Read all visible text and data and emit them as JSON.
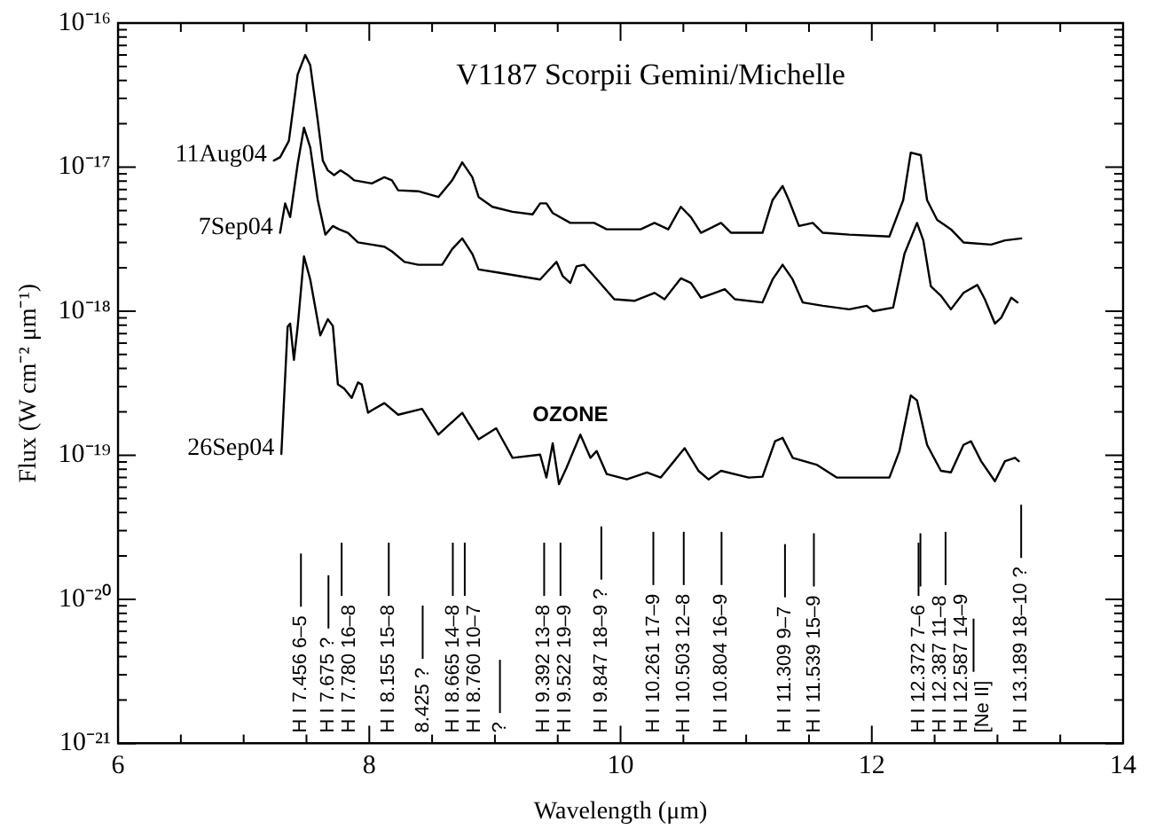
{
  "chart_data": {
    "type": "line",
    "title": "V1187 Scorpii Gemini/Michelle",
    "xlabel": "Wavelength (μm)",
    "ylabel": "Flux (W cm⁻² μm⁻¹)",
    "log": "y",
    "legend": false,
    "marker": "none",
    "xlim": [
      6,
      14
    ],
    "xticks": [
      6,
      {
        "value": 6.5,
        "label": null
      },
      {
        "value": 7,
        "label": null
      },
      {
        "value": 7.5,
        "label": null
      },
      8,
      {
        "value": 8.5,
        "label": null
      },
      {
        "value": 9,
        "label": null
      },
      {
        "value": 9.5,
        "label": null
      },
      10,
      {
        "value": 10.5,
        "label": null
      },
      {
        "value": 11,
        "label": null
      },
      {
        "value": 11.5,
        "label": null
      },
      12,
      {
        "value": 12.5,
        "label": null
      },
      {
        "value": 13,
        "label": null
      },
      {
        "value": 13.5,
        "label": null
      },
      14
    ],
    "ylim": [
      1e-21,
      1e-16
    ],
    "yticks": [
      {
        "value": 1e-21,
        "label": "10⁻²¹"
      },
      {
        "value": 2e-21,
        "label": null
      },
      {
        "value": 3e-21,
        "label": null
      },
      {
        "value": 4e-21,
        "label": null
      },
      {
        "value": 5e-21,
        "label": null
      },
      {
        "value": 6e-21,
        "label": null
      },
      {
        "value": 7e-21,
        "label": null
      },
      {
        "value": 8e-21,
        "label": null
      },
      {
        "value": 9e-21,
        "label": null
      },
      {
        "value": 1e-20,
        "label": "10⁻²⁰"
      },
      {
        "value": 2e-20,
        "label": null
      },
      {
        "value": 3e-20,
        "label": null
      },
      {
        "value": 4e-20,
        "label": null
      },
      {
        "value": 5e-20,
        "label": null
      },
      {
        "value": 6e-20,
        "label": null
      },
      {
        "value": 7e-20,
        "label": null
      },
      {
        "value": 8e-20,
        "label": null
      },
      {
        "value": 9e-20,
        "label": null
      },
      {
        "value": 1e-19,
        "label": "10⁻¹⁹"
      },
      {
        "value": 2e-19,
        "label": null
      },
      {
        "value": 3e-19,
        "label": null
      },
      {
        "value": 4e-19,
        "label": null
      },
      {
        "value": 5e-19,
        "label": null
      },
      {
        "value": 6e-19,
        "label": null
      },
      {
        "value": 7e-19,
        "label": null
      },
      {
        "value": 8e-19,
        "label": null
      },
      {
        "value": 9e-19,
        "label": null
      },
      {
        "value": 1e-18,
        "label": "10⁻¹⁸"
      },
      {
        "value": 2e-18,
        "label": null
      },
      {
        "value": 3e-18,
        "label": null
      },
      {
        "value": 4e-18,
        "label": null
      },
      {
        "value": 5e-18,
        "label": null
      },
      {
        "value": 6e-18,
        "label": null
      },
      {
        "value": 7e-18,
        "label": null
      },
      {
        "value": 8e-18,
        "label": null
      },
      {
        "value": 9e-18,
        "label": null
      },
      {
        "value": 1e-17,
        "label": "10⁻¹⁷"
      },
      {
        "value": 2e-17,
        "label": null
      },
      {
        "value": 3e-17,
        "label": null
      },
      {
        "value": 4e-17,
        "label": null
      },
      {
        "value": 5e-17,
        "label": null
      },
      {
        "value": 6e-17,
        "label": null
      },
      {
        "value": 7e-17,
        "label": null
      },
      {
        "value": 8e-17,
        "label": null
      },
      {
        "value": 9e-17,
        "label": null
      },
      {
        "value": 1e-16,
        "label": "10⁻¹⁶"
      }
    ],
    "series": [
      {
        "name": "11Aug04",
        "color": "#000000",
        "x": [
          7.24,
          7.29,
          7.36,
          7.43,
          7.49,
          7.53,
          7.59,
          7.63,
          7.67,
          7.72,
          7.77,
          7.83,
          7.88,
          8.02,
          8.12,
          8.18,
          8.23,
          8.39,
          8.55,
          8.66,
          8.74,
          8.82,
          8.87,
          8.98,
          9.14,
          9.3,
          9.36,
          9.41,
          9.46,
          9.6,
          9.79,
          9.89,
          10.16,
          10.27,
          10.38,
          10.48,
          10.56,
          10.64,
          10.75,
          10.8,
          10.88,
          11.13,
          11.21,
          11.29,
          11.34,
          11.42,
          11.53,
          11.61,
          11.82,
          12.14,
          12.25,
          12.31,
          12.39,
          12.44,
          12.52,
          12.63,
          12.73,
          12.95,
          13.06,
          13.19
        ],
        "values": [
          1.11e-17,
          1.17e-17,
          1.52e-17,
          4.4e-17,
          6e-17,
          5.1e-17,
          2.1e-17,
          1.11e-17,
          9.5e-18,
          8.8e-18,
          9.5e-18,
          8.8e-18,
          8.1e-18,
          7.7e-18,
          8.5e-18,
          8.1e-18,
          6.9e-18,
          6.8e-18,
          6.2e-18,
          8.1e-18,
          1.08e-17,
          8.5e-18,
          6.2e-18,
          5.3e-18,
          4.9e-18,
          4.7e-18,
          5.6e-18,
          5.6e-18,
          4.8e-18,
          4.1e-18,
          4.1e-18,
          3.7e-18,
          3.7e-18,
          4.1e-18,
          3.7e-18,
          5.3e-18,
          4.5e-18,
          3.5e-18,
          3.9e-18,
          4.1e-18,
          3.5e-18,
          3.5e-18,
          5.9e-18,
          7.4e-18,
          5.9e-18,
          3.9e-18,
          4.1e-18,
          3.5e-18,
          3.4e-18,
          3.3e-18,
          5.9e-18,
          1.26e-17,
          1.21e-17,
          5.9e-18,
          4.3e-18,
          3.7e-18,
          3e-18,
          2.9e-18,
          3.1e-18,
          3.2e-18
        ]
      },
      {
        "name": "7Sep04",
        "color": "#000000",
        "x": [
          7.29,
          7.33,
          7.37,
          7.43,
          7.48,
          7.53,
          7.59,
          7.65,
          7.71,
          7.76,
          7.83,
          7.91,
          8.02,
          8.12,
          8.18,
          8.28,
          8.39,
          8.58,
          8.66,
          8.74,
          8.82,
          8.87,
          9.03,
          9.2,
          9.36,
          9.41,
          9.49,
          9.54,
          9.6,
          9.65,
          9.71,
          9.79,
          9.95,
          10.11,
          10.27,
          10.35,
          10.48,
          10.56,
          10.64,
          10.75,
          10.83,
          10.91,
          11.13,
          11.21,
          11.29,
          11.37,
          11.45,
          11.61,
          11.82,
          11.96,
          12.01,
          12.17,
          12.26,
          12.36,
          12.41,
          12.47,
          12.55,
          12.63,
          12.73,
          12.84,
          12.9,
          12.98,
          13.03,
          13.11,
          13.16
        ],
        "values": [
          3.5e-18,
          5.6e-18,
          4.5e-18,
          1.05e-17,
          1.88e-17,
          1.37e-17,
          5.9e-18,
          3.4e-18,
          3.9e-18,
          3.7e-18,
          3.5e-18,
          3e-18,
          2.9e-18,
          2.8e-18,
          2.6e-18,
          2.2e-18,
          2.1e-18,
          2.1e-18,
          2.7e-18,
          3.2e-18,
          2.5e-18,
          1.95e-18,
          1.85e-18,
          1.75e-18,
          1.66e-18,
          1.85e-18,
          2.2e-18,
          1.75e-18,
          1.57e-18,
          2.05e-18,
          2.1e-18,
          1.75e-18,
          1.21e-18,
          1.18e-18,
          1.34e-18,
          1.21e-18,
          1.69e-18,
          1.57e-18,
          1.24e-18,
          1.34e-18,
          1.42e-18,
          1.21e-18,
          1.15e-18,
          1.66e-18,
          2.1e-18,
          1.66e-18,
          1.15e-18,
          1.09e-18,
          1.03e-18,
          1.09e-18,
          1e-18,
          1.06e-18,
          2.5e-18,
          4.1e-18,
          3.1e-18,
          1.49e-18,
          1.28e-18,
          1.03e-18,
          1.34e-18,
          1.52e-18,
          1.21e-18,
          8.2e-19,
          9e-19,
          1.24e-18,
          1.15e-18
        ]
      },
      {
        "name": "26Sep04",
        "color": "#000000",
        "x": [
          7.3,
          7.35,
          7.37,
          7.4,
          7.43,
          7.48,
          7.53,
          7.61,
          7.67,
          7.71,
          7.75,
          7.8,
          7.86,
          7.91,
          7.94,
          7.99,
          8.02,
          8.12,
          8.23,
          8.42,
          8.55,
          8.74,
          8.87,
          9.01,
          9.14,
          9.36,
          9.41,
          9.46,
          9.51,
          9.57,
          9.68,
          9.76,
          9.81,
          9.89,
          10.05,
          10.21,
          10.32,
          10.51,
          10.62,
          10.7,
          10.8,
          11.02,
          11.13,
          11.23,
          11.29,
          11.37,
          11.56,
          11.72,
          12.14,
          12.22,
          12.31,
          12.36,
          12.44,
          12.55,
          12.63,
          12.73,
          12.79,
          12.87,
          12.98,
          13.06,
          13.14,
          13.17
        ],
        "values": [
          1.02e-19,
          7.8e-19,
          8.2e-19,
          4.6e-19,
          7.8e-19,
          2.4e-18,
          1.66e-18,
          6.8e-19,
          8.8e-19,
          7.9e-19,
          3.1e-19,
          2.9e-19,
          2.5e-19,
          3.2e-19,
          3.1e-19,
          1.97e-19,
          2.05e-19,
          2.3e-19,
          1.91e-19,
          2.1e-19,
          1.39e-19,
          1.97e-19,
          1.29e-19,
          1.54e-19,
          9.6e-20,
          1.01e-19,
          7e-20,
          1.21e-19,
          6.3e-20,
          8.2e-20,
          1.39e-19,
          9.6e-20,
          1.07e-19,
          7.4e-20,
          6.8e-20,
          7.6e-20,
          7e-20,
          1.12e-19,
          7.8e-20,
          6.8e-20,
          7.8e-20,
          7e-20,
          7.1e-20,
          1.25e-19,
          1.32e-19,
          9.6e-20,
          8.6e-20,
          7e-20,
          7e-20,
          1.07e-19,
          2.6e-19,
          2.4e-19,
          1.18e-19,
          7.8e-20,
          7.6e-20,
          1.18e-19,
          1.25e-19,
          9.1e-20,
          6.6e-20,
          9.1e-20,
          9.6e-20,
          9.1e-20
        ]
      }
    ],
    "annotations": [
      "OZONE"
    ],
    "ref_lines": [
      {
        "axis": "x",
        "value": 7.456,
        "label": "H I 7.456 6–5"
      },
      {
        "axis": "x",
        "value": 7.675,
        "label": "H I 7.675 ?"
      },
      {
        "axis": "x",
        "value": 7.78,
        "label": "H I 7.780 16–8"
      },
      {
        "axis": "x",
        "value": 8.155,
        "label": "H I 8.155 15–8"
      },
      {
        "axis": "x",
        "value": 8.425,
        "label": "8.425 ?"
      },
      {
        "axis": "x",
        "value": 8.665,
        "label": "H I 8.665 14–8"
      },
      {
        "axis": "x",
        "value": 8.76,
        "label": "H I 8.760 10–7"
      },
      {
        "axis": "x",
        "value": 9.04,
        "label": "?"
      },
      {
        "axis": "x",
        "value": 9.392,
        "label": "H I 9.392 13–8"
      },
      {
        "axis": "x",
        "value": 9.522,
        "label": "H I 9.522 19–9"
      },
      {
        "axis": "x",
        "value": 9.847,
        "label": "H I 9.847 18–9 ?"
      },
      {
        "axis": "x",
        "value": 10.261,
        "label": "H I 10.261 17–9"
      },
      {
        "axis": "x",
        "value": 10.503,
        "label": "H I 10.503 12–8"
      },
      {
        "axis": "x",
        "value": 10.804,
        "label": "H I 10.804 16–9"
      },
      {
        "axis": "x",
        "value": 11.309,
        "label": "H I 11.309 9–7"
      },
      {
        "axis": "x",
        "value": 11.539,
        "label": "H I 11.539 15–9"
      },
      {
        "axis": "x",
        "value": 12.372,
        "label": "H I 12.372 7–6"
      },
      {
        "axis": "x",
        "value": 12.387,
        "label": "H I 12.387 11–8"
      },
      {
        "axis": "x",
        "value": 12.587,
        "label": "H I 12.587 14–9"
      },
      {
        "axis": "x",
        "value": 12.81,
        "label": "[Ne II]"
      },
      {
        "axis": "x",
        "value": 13.189,
        "label": "H I 13.189 18–10 ?"
      }
    ]
  }
}
